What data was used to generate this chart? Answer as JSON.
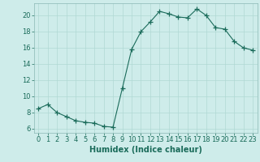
{
  "title": "",
  "xlabel": "Humidex (Indice chaleur)",
  "ylabel": "",
  "background_color": "#ceecea",
  "plot_bg_color": "#ceecea",
  "line_color": "#1a6b5a",
  "marker": "+",
  "x": [
    0,
    1,
    2,
    3,
    4,
    5,
    6,
    7,
    8,
    9,
    10,
    11,
    12,
    13,
    14,
    15,
    16,
    17,
    18,
    19,
    20,
    21,
    22,
    23
  ],
  "y": [
    8.5,
    9.0,
    8.0,
    7.5,
    7.0,
    6.8,
    6.7,
    6.3,
    6.2,
    11.0,
    15.8,
    18.0,
    19.2,
    20.5,
    20.2,
    19.8,
    19.7,
    20.8,
    20.0,
    18.5,
    18.3,
    16.8,
    16.0,
    15.7
  ],
  "ylim": [
    5.5,
    21.5
  ],
  "xlim": [
    -0.5,
    23.5
  ],
  "yticks": [
    6,
    8,
    10,
    12,
    14,
    16,
    18,
    20
  ],
  "xticks": [
    0,
    1,
    2,
    3,
    4,
    5,
    6,
    7,
    8,
    9,
    10,
    11,
    12,
    13,
    14,
    15,
    16,
    17,
    18,
    19,
    20,
    21,
    22,
    23
  ],
  "grid_color": "#b0d8d4",
  "tick_color": "#1a6b5a",
  "spine_color": "#8ab8b4",
  "label_fontsize": 7,
  "tick_fontsize": 6
}
